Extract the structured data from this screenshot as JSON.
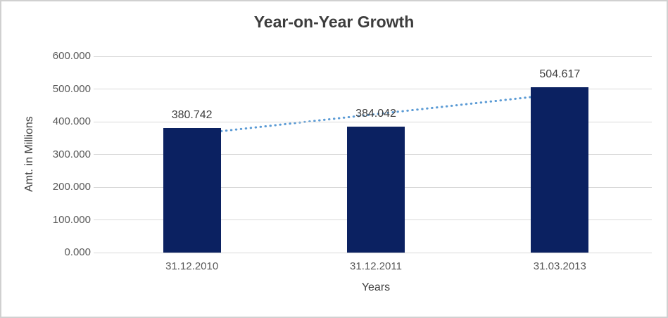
{
  "chart_data": {
    "type": "bar",
    "title": "Year-on-Year Growth",
    "xlabel": "Years",
    "ylabel": "Amt. in Millions",
    "categories": [
      "31.12.2010",
      "31.12.2011",
      "31.03.2013"
    ],
    "values": [
      380.742,
      384.042,
      504.617
    ],
    "value_labels": [
      "380.742",
      "384.042",
      "504.617"
    ],
    "ylim": [
      0,
      600
    ],
    "ytick_values": [
      0,
      100,
      200,
      300,
      400,
      500,
      600
    ],
    "ytick_labels": [
      "0.000",
      "100.000",
      "200.000",
      "300.000",
      "400.000",
      "500.000",
      "600.000"
    ],
    "grid": true,
    "legend": false,
    "trendline": {
      "type": "linear",
      "style": "dotted"
    },
    "colors": {
      "bar": "#0b2161",
      "trendline": "#5b9bd5",
      "gridline": "#d9d9d9",
      "title_text": "#3d3d3d",
      "tick_text": "#595959",
      "label_text": "#404040",
      "border": "#d0d0d0"
    }
  }
}
